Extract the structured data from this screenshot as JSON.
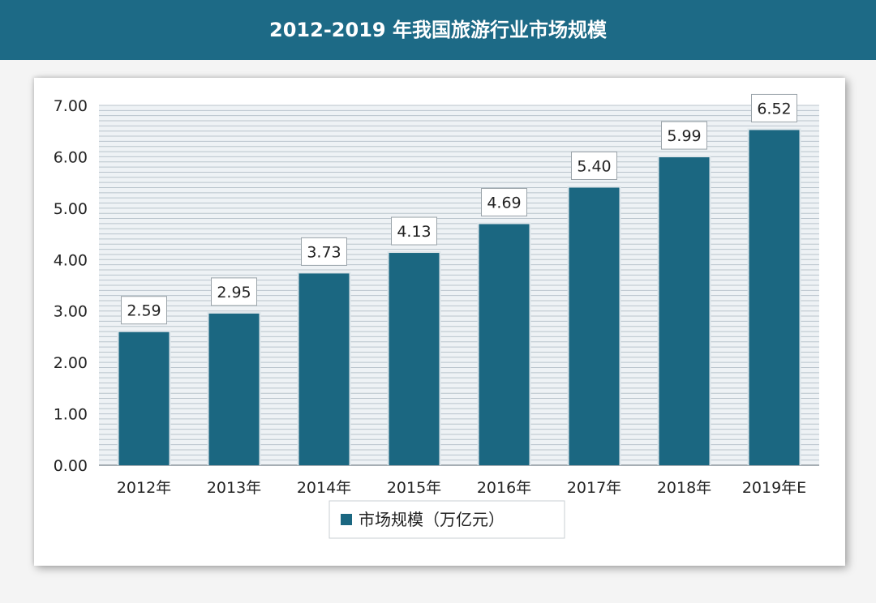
{
  "chart_data": {
    "type": "bar",
    "title": "2012-2019 年我国旅游行业市场规模",
    "categories": [
      "2012年",
      "2013年",
      "2014年",
      "2015年",
      "2016年",
      "2017年",
      "2018年",
      "2019年E"
    ],
    "series": [
      {
        "name": "市场规模（万亿元）",
        "values": [
          2.59,
          2.95,
          3.73,
          4.13,
          4.69,
          5.4,
          5.99,
          6.52
        ]
      }
    ],
    "data_labels": [
      "2.59",
      "2.95",
      "3.73",
      "4.13",
      "4.69",
      "5.40",
      "5.99",
      "6.52"
    ],
    "y_ticks": [
      "0.00",
      "1.00",
      "2.00",
      "3.00",
      "4.00",
      "5.00",
      "6.00",
      "7.00"
    ],
    "ylim": [
      0,
      7
    ],
    "grid": true,
    "legend_position": "bottom",
    "colors": {
      "bar": "#1b6781",
      "title_bar": "#1d6a86",
      "grid": "#b9c4cc"
    }
  }
}
